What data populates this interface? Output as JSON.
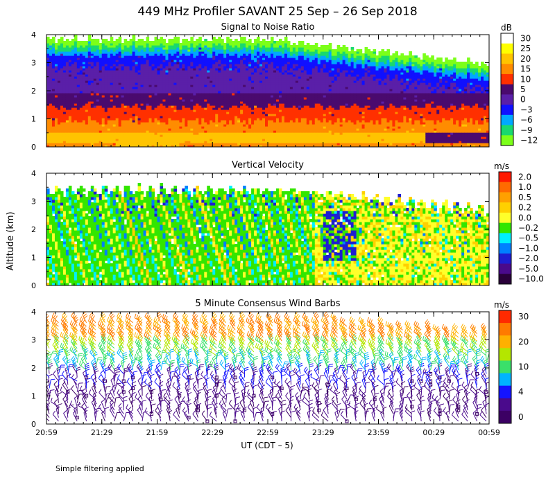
{
  "figure": {
    "title": "449 MHz Profiler SAVANT 25 Sep – 26 Sep 2018",
    "ylabel": "Altitude (km)",
    "xlabel": "UT (CDT – 5)",
    "footnote": "Simple filtering applied"
  },
  "chart_data": [
    {
      "type": "heatmap",
      "title": "Signal to Noise Ratio",
      "unit": "dB",
      "xlabel": "UT (CDT – 5)",
      "ylabel": "Altitude (km)",
      "ylim": [
        0,
        4
      ],
      "ytick_labels": [
        "0",
        "1",
        "2",
        "3",
        "4"
      ],
      "x_tick_labels": [
        "20:59",
        "21:29",
        "21:59",
        "22:29",
        "22:59",
        "23:29",
        "23:59",
        "00:29",
        "00:59"
      ],
      "colorbar": [
        {
          "label": "30",
          "color": "#ffffff"
        },
        {
          "label": "25",
          "color": "#ffff00"
        },
        {
          "label": "20",
          "color": "#ffc400"
        },
        {
          "label": "15",
          "color": "#ff8c00"
        },
        {
          "label": "10",
          "color": "#ff3000"
        },
        {
          "label": "5",
          "color": "#4a0a6e"
        },
        {
          "label": "0",
          "color": "#5a1fa8"
        },
        {
          "label": "−3",
          "color": "#1010ff"
        },
        {
          "label": "−6",
          "color": "#00a8ff"
        },
        {
          "label": "−9",
          "color": "#19d96e"
        },
        {
          "label": "−12",
          "color": "#7cff19"
        }
      ]
    },
    {
      "type": "heatmap",
      "title": "Vertical Velocity",
      "unit": "m/s",
      "xlabel": "UT (CDT – 5)",
      "ylabel": "Altitude (km)",
      "ylim": [
        0,
        4
      ],
      "ytick_labels": [
        "0",
        "1",
        "2",
        "3",
        "4"
      ],
      "x_tick_labels": [
        "20:59",
        "21:29",
        "21:59",
        "22:29",
        "22:59",
        "23:29",
        "23:59",
        "00:29",
        "00:59"
      ],
      "colorbar": [
        {
          "label": "2.0",
          "color": "#ff1a00"
        },
        {
          "label": "1.0",
          "color": "#ff6a00"
        },
        {
          "label": "0.5",
          "color": "#ffa000"
        },
        {
          "label": "0.2",
          "color": "#ffd000"
        },
        {
          "label": "0.0",
          "color": "#ffff2a"
        },
        {
          "label": "−0.2",
          "color": "#33e600"
        },
        {
          "label": "−0.5",
          "color": "#00f0ff"
        },
        {
          "label": "−1.0",
          "color": "#0080ff"
        },
        {
          "label": "−2.0",
          "color": "#1e1ed2"
        },
        {
          "label": "−5.0",
          "color": "#4a0a8c"
        },
        {
          "label": "−10.0",
          "color": "#2a003a"
        }
      ]
    },
    {
      "type": "wind_barbs",
      "title": "5 Minute Consensus Wind Barbs",
      "unit": "m/s",
      "xlabel": "UT (CDT – 5)",
      "ylabel": "Altitude (km)",
      "ylim": [
        0,
        4
      ],
      "ytick_labels": [
        "0",
        "1",
        "2",
        "3",
        "4"
      ],
      "x_tick_labels": [
        "20:59",
        "21:29",
        "21:59",
        "22:29",
        "22:59",
        "23:29",
        "23:59",
        "00:29",
        "00:59"
      ],
      "colorbar": [
        {
          "label": "30",
          "color": "#ff2a00"
        },
        {
          "label": "",
          "color": "#ff7a00"
        },
        {
          "label": "20",
          "color": "#ffb000"
        },
        {
          "label": "",
          "color": "#b4e600"
        },
        {
          "label": "10",
          "color": "#3ae06a"
        },
        {
          "label": "",
          "color": "#00b4ff"
        },
        {
          "label": "4",
          "color": "#1414ff"
        },
        {
          "label": "",
          "color": "#4a0a8c"
        },
        {
          "label": "0",
          "color": "#3c0064"
        }
      ]
    }
  ]
}
